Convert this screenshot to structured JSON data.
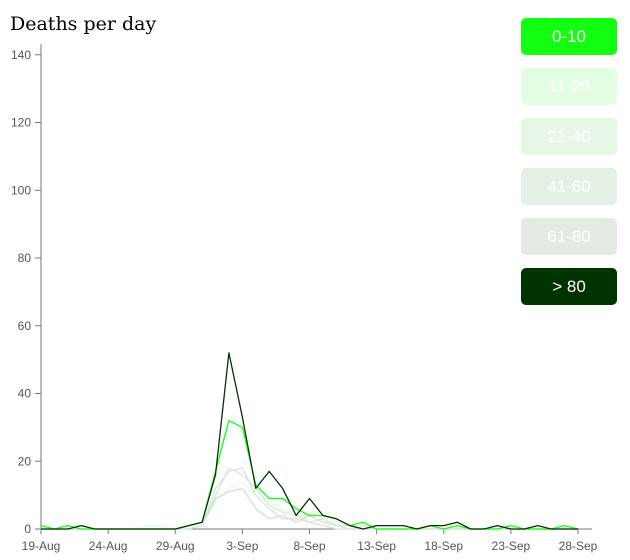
{
  "chart_data": {
    "type": "line",
    "title": "Deaths per day",
    "xlabel": "",
    "ylabel": "",
    "x_start": "19-Aug",
    "x_tick_labels": [
      "19-Aug",
      "24-Aug",
      "29-Aug",
      "3-Sep",
      "8-Sep",
      "13-Sep",
      "18-Sep",
      "23-Sep",
      "28-Sep"
    ],
    "x_tick_positions": [
      0,
      5,
      10,
      15,
      20,
      25,
      30,
      35,
      40
    ],
    "y_ticks": [
      0,
      20,
      40,
      60,
      80,
      100,
      120,
      140
    ],
    "ylim": [
      0,
      142
    ],
    "xlim": [
      0,
      40
    ],
    "grid": false,
    "legend_position": "right",
    "series": [
      {
        "name": "0-10",
        "color": "#12ff12",
        "opacity": 1,
        "values": [
          1,
          0,
          1,
          0,
          0,
          0,
          0,
          0,
          0,
          0,
          0,
          1,
          2,
          17,
          32,
          30,
          13,
          9,
          9,
          6,
          4,
          4,
          3,
          1,
          2,
          0,
          0,
          0,
          0,
          1,
          0,
          1,
          0,
          0,
          0,
          1,
          0,
          0,
          0,
          1,
          0
        ]
      },
      {
        "name": "11-20",
        "color": "#e3fbe3",
        "opacity": 1,
        "values": [
          0,
          0,
          0,
          0,
          0,
          0,
          0,
          0,
          1,
          1,
          0,
          0,
          1,
          8,
          12,
          14,
          10,
          8,
          6,
          4,
          4,
          2,
          2,
          1,
          1,
          0,
          0,
          0,
          0,
          1,
          0,
          0,
          0,
          0,
          0,
          0,
          0,
          0,
          0,
          0,
          0
        ]
      },
      {
        "name": "21-40",
        "color": "#d4ecd4",
        "opacity": 1,
        "values": [
          0,
          0,
          0,
          0,
          0,
          0,
          0,
          0,
          0,
          0,
          0,
          0,
          1,
          10,
          18,
          16,
          12,
          7,
          5,
          4,
          2,
          3,
          1,
          0,
          1,
          0,
          0,
          0,
          0,
          0,
          0,
          0,
          0,
          0,
          0,
          0,
          0,
          0,
          0,
          0,
          0
        ]
      },
      {
        "name": "41-60",
        "color": "#cfe3cf",
        "opacity": 1,
        "values": [
          0,
          0,
          0,
          0,
          0,
          0,
          0,
          0,
          0,
          0,
          0,
          0,
          1,
          9,
          11,
          12,
          6,
          3,
          4,
          2,
          4,
          2,
          1,
          1,
          0,
          0,
          0,
          0,
          0,
          0,
          0,
          0,
          0,
          0,
          0,
          0,
          0,
          0,
          0,
          0,
          0
        ]
      },
      {
        "name": "61-80",
        "color": "#d8e4d8",
        "opacity": 1,
        "values": [
          0,
          0,
          0,
          0,
          0,
          0,
          0,
          0,
          0,
          0,
          0,
          0,
          1,
          12,
          17,
          18,
          10,
          6,
          3,
          3,
          2,
          1,
          0,
          0,
          0,
          0,
          0,
          0,
          0,
          0,
          0,
          0,
          0,
          0,
          0,
          0,
          0,
          0,
          0,
          0,
          0
        ]
      },
      {
        "name": "> 80",
        "color": "#003300",
        "opacity": 1,
        "values": [
          0,
          0,
          0,
          1,
          0,
          0,
          0,
          0,
          0,
          0,
          0,
          1,
          2,
          16,
          52,
          33,
          12,
          17,
          12,
          4,
          9,
          4,
          3,
          1,
          0,
          1,
          1,
          1,
          0,
          1,
          1,
          2,
          0,
          0,
          1,
          0,
          0,
          1,
          0,
          0,
          0
        ]
      }
    ]
  },
  "legend": {
    "buttons": [
      {
        "label": "0-10",
        "bg": "#12ff12"
      },
      {
        "label": "11-20",
        "bg": "#e3fde3"
      },
      {
        "label": "21-40",
        "bg": "#e6f7e6"
      },
      {
        "label": "41-60",
        "bg": "#e5f0e5"
      },
      {
        "label": "61-80",
        "bg": "#e3ebe3"
      },
      {
        "label": "> 80",
        "bg": "#003300"
      }
    ]
  }
}
